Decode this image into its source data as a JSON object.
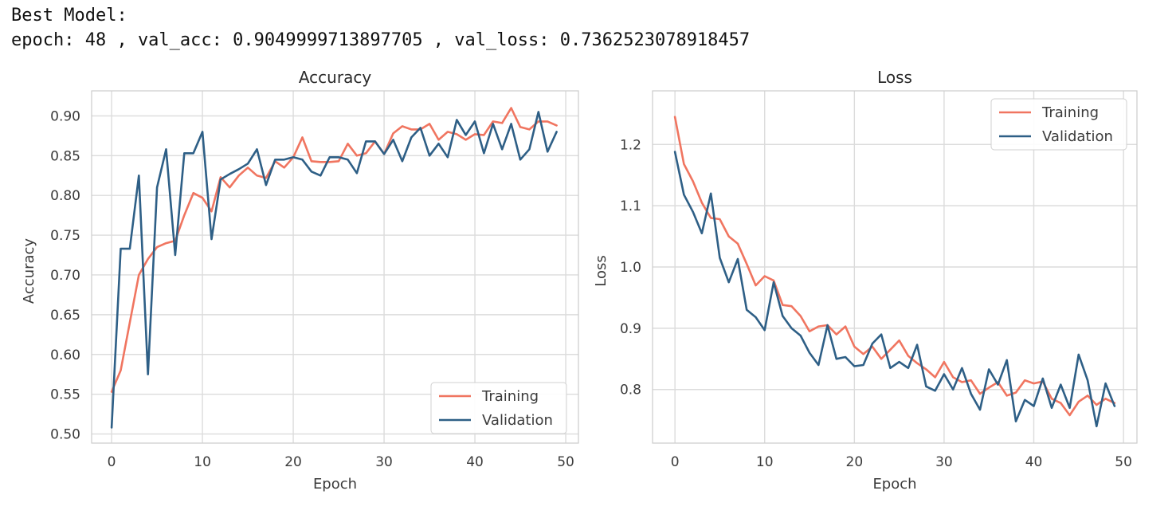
{
  "header": {
    "title": "Best Model:",
    "summary": "epoch: 48 , val_acc: 0.9049999713897705 , val_loss: 0.7362523078918457"
  },
  "colors": {
    "training": "#f07560",
    "validation": "#2e5f86",
    "grid": "#dcdcdc",
    "frame": "#cccccc",
    "text": "#3b3b3b"
  },
  "chart_data": [
    {
      "type": "line",
      "title": "Accuracy",
      "xlabel": "Epoch",
      "ylabel": "Accuracy",
      "xlim": [
        -2.2,
        51.4
      ],
      "ylim": [
        0.4885,
        0.9315
      ],
      "xticks": [
        0,
        10,
        20,
        30,
        40,
        50
      ],
      "yticks": [
        0.5,
        0.55,
        0.6,
        0.65,
        0.7,
        0.75,
        0.8,
        0.85,
        0.9
      ],
      "ytick_labels": [
        "0.50",
        "0.55",
        "0.60",
        "0.65",
        "0.70",
        "0.75",
        "0.80",
        "0.85",
        "0.90"
      ],
      "grid": true,
      "legend": "lower-right",
      "x": [
        0,
        1,
        2,
        3,
        4,
        5,
        6,
        7,
        8,
        9,
        10,
        11,
        12,
        13,
        14,
        15,
        16,
        17,
        18,
        19,
        20,
        21,
        22,
        23,
        24,
        25,
        26,
        27,
        28,
        29,
        30,
        31,
        32,
        33,
        34,
        35,
        36,
        37,
        38,
        39,
        40,
        41,
        42,
        43,
        44,
        45,
        46,
        47,
        48,
        49
      ],
      "series": [
        {
          "name": "Training",
          "color": "#f07560",
          "values": [
            0.553,
            0.58,
            0.64,
            0.7,
            0.72,
            0.735,
            0.74,
            0.743,
            0.775,
            0.803,
            0.797,
            0.78,
            0.823,
            0.81,
            0.825,
            0.835,
            0.825,
            0.822,
            0.843,
            0.835,
            0.848,
            0.873,
            0.843,
            0.842,
            0.842,
            0.843,
            0.865,
            0.85,
            0.853,
            0.868,
            0.852,
            0.878,
            0.887,
            0.883,
            0.883,
            0.89,
            0.87,
            0.88,
            0.877,
            0.87,
            0.877,
            0.876,
            0.893,
            0.891,
            0.91,
            0.886,
            0.883,
            0.893,
            0.893,
            0.888
          ]
        },
        {
          "name": "Validation",
          "color": "#2e5f86",
          "values": [
            0.508,
            0.733,
            0.733,
            0.825,
            0.575,
            0.81,
            0.858,
            0.725,
            0.853,
            0.853,
            0.88,
            0.745,
            0.82,
            0.827,
            0.833,
            0.84,
            0.858,
            0.813,
            0.845,
            0.845,
            0.848,
            0.845,
            0.83,
            0.825,
            0.848,
            0.848,
            0.845,
            0.828,
            0.868,
            0.868,
            0.852,
            0.87,
            0.843,
            0.873,
            0.885,
            0.85,
            0.865,
            0.848,
            0.895,
            0.876,
            0.893,
            0.853,
            0.89,
            0.858,
            0.89,
            0.845,
            0.858,
            0.905,
            0.855,
            0.88
          ]
        }
      ]
    },
    {
      "type": "line",
      "title": "Loss",
      "xlabel": "Epoch",
      "ylabel": "Loss",
      "xlim": [
        -2.5,
        51.5
      ],
      "ylim": [
        0.7125,
        1.2875
      ],
      "xticks": [
        0,
        10,
        20,
        30,
        40,
        50
      ],
      "yticks": [
        0.8,
        0.9,
        1.0,
        1.1,
        1.2
      ],
      "ytick_labels": [
        "0.8",
        "0.9",
        "1.0",
        "1.1",
        "1.2"
      ],
      "grid": true,
      "legend": "upper-right",
      "x": [
        0,
        1,
        2,
        3,
        4,
        5,
        6,
        7,
        8,
        9,
        10,
        11,
        12,
        13,
        14,
        15,
        16,
        17,
        18,
        19,
        20,
        21,
        22,
        23,
        24,
        25,
        26,
        27,
        28,
        29,
        30,
        31,
        32,
        33,
        34,
        35,
        36,
        37,
        38,
        39,
        40,
        41,
        42,
        43,
        44,
        45,
        46,
        47,
        48,
        49
      ],
      "series": [
        {
          "name": "Training",
          "color": "#f07560",
          "values": [
            1.245,
            1.168,
            1.14,
            1.105,
            1.08,
            1.078,
            1.05,
            1.038,
            1.005,
            0.97,
            0.985,
            0.978,
            0.938,
            0.936,
            0.92,
            0.895,
            0.903,
            0.905,
            0.89,
            0.903,
            0.87,
            0.858,
            0.87,
            0.85,
            0.865,
            0.88,
            0.855,
            0.843,
            0.833,
            0.82,
            0.845,
            0.82,
            0.812,
            0.815,
            0.793,
            0.803,
            0.812,
            0.79,
            0.795,
            0.815,
            0.81,
            0.813,
            0.785,
            0.778,
            0.758,
            0.78,
            0.79,
            0.775,
            0.785,
            0.778
          ]
        },
        {
          "name": "Validation",
          "color": "#2e5f86",
          "values": [
            1.188,
            1.118,
            1.09,
            1.055,
            1.12,
            1.015,
            0.975,
            1.013,
            0.93,
            0.918,
            0.897,
            0.975,
            0.92,
            0.9,
            0.888,
            0.86,
            0.84,
            0.905,
            0.85,
            0.853,
            0.838,
            0.84,
            0.875,
            0.89,
            0.835,
            0.845,
            0.835,
            0.873,
            0.805,
            0.798,
            0.825,
            0.8,
            0.835,
            0.793,
            0.767,
            0.833,
            0.808,
            0.848,
            0.748,
            0.783,
            0.773,
            0.818,
            0.77,
            0.808,
            0.77,
            0.857,
            0.815,
            0.74,
            0.81,
            0.773
          ]
        }
      ]
    }
  ]
}
